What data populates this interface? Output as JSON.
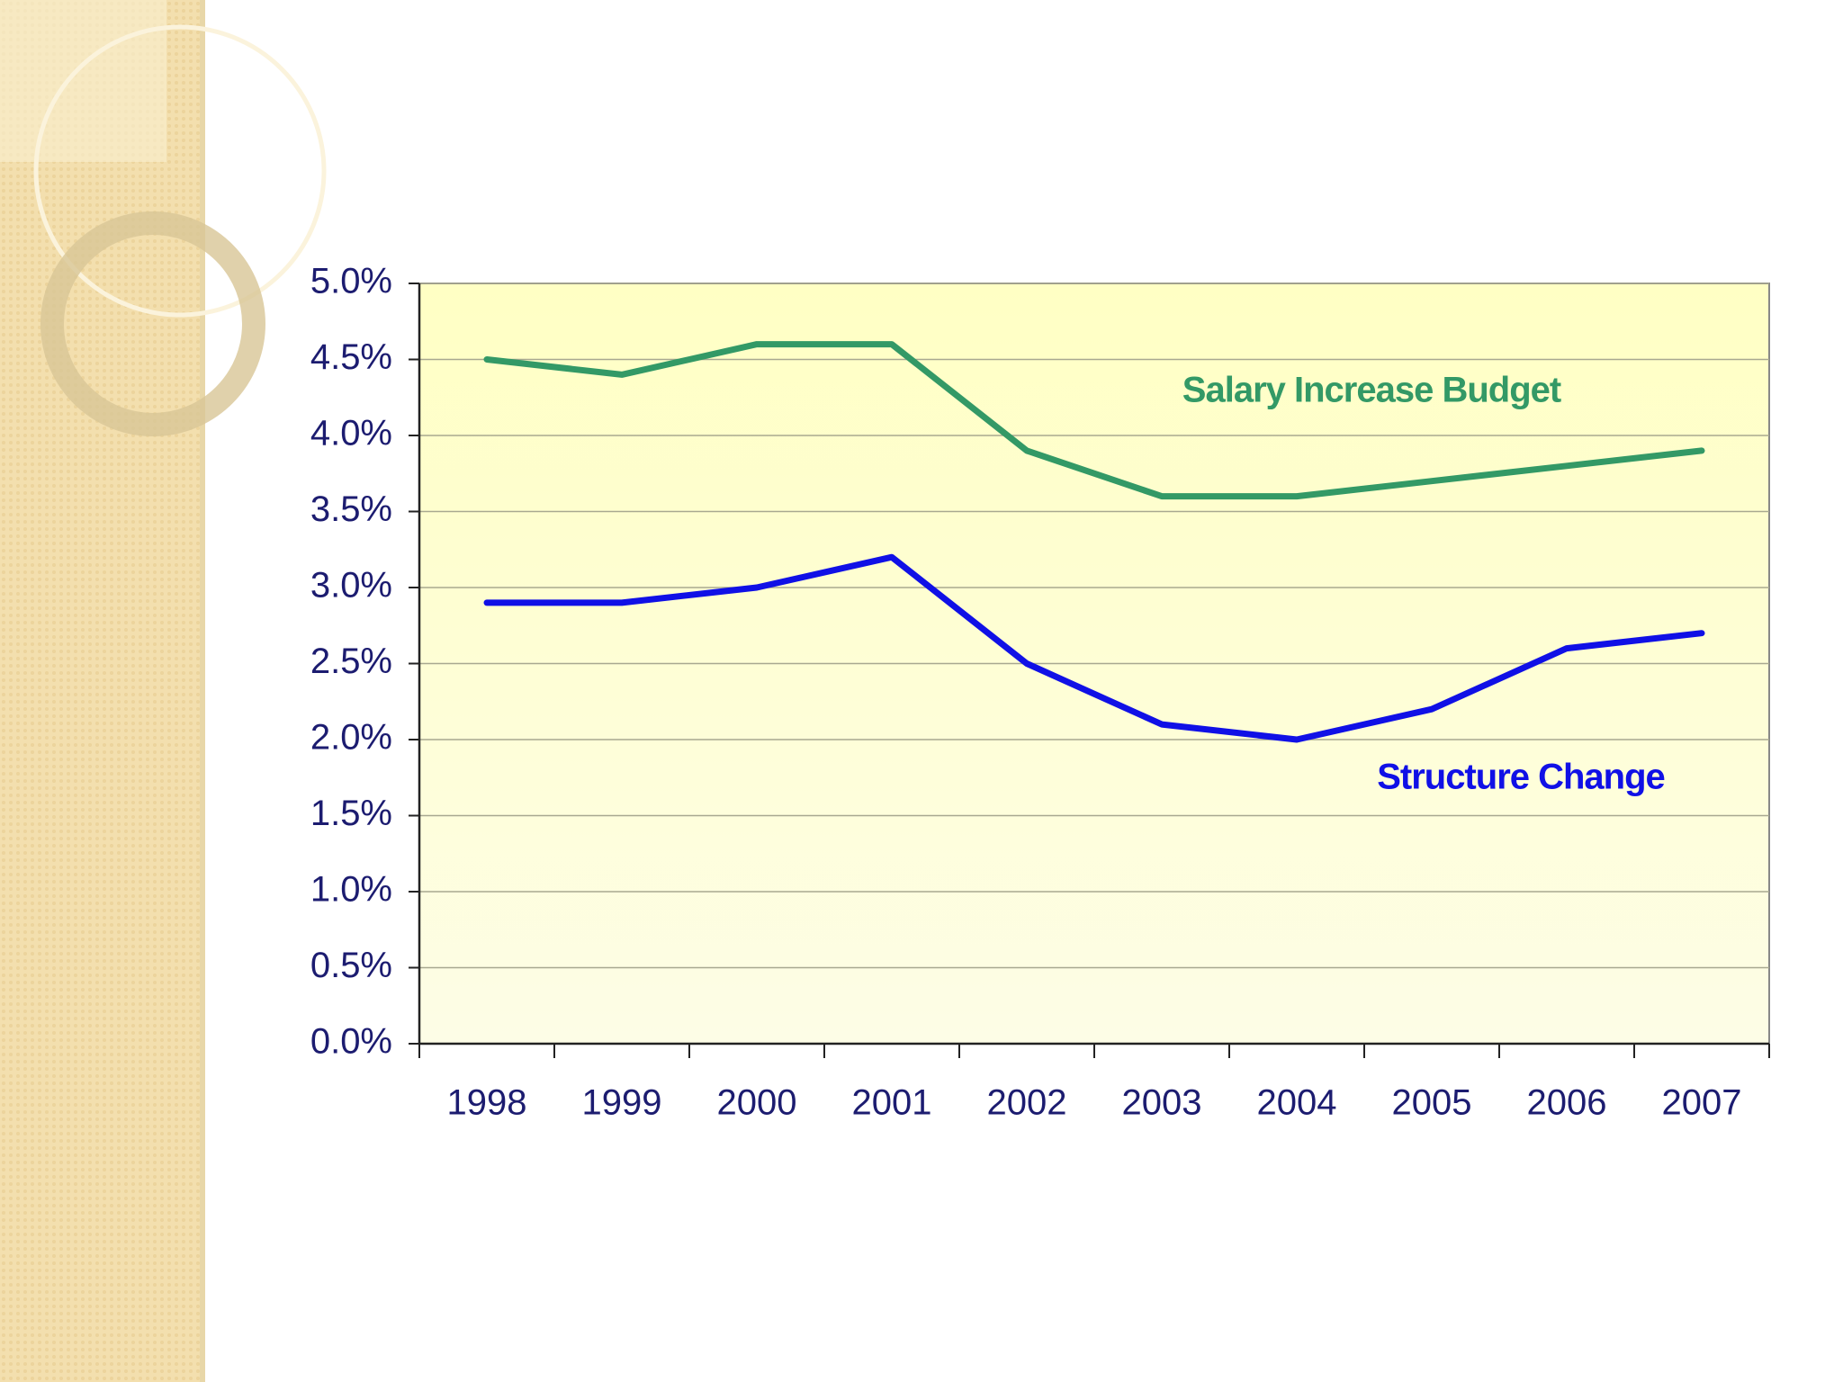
{
  "chart_data": {
    "type": "line",
    "categories": [
      "1998",
      "1999",
      "2000",
      "2001",
      "2002",
      "2003",
      "2004",
      "2005",
      "2006",
      "2007"
    ],
    "series": [
      {
        "name": "Salary Increase Budget",
        "color": "#339966",
        "values": [
          4.5,
          4.4,
          4.6,
          4.6,
          3.9,
          3.6,
          3.6,
          3.7,
          3.8,
          3.9
        ]
      },
      {
        "name": "Structure Change",
        "color": "#1010e6",
        "values": [
          2.9,
          2.9,
          3.0,
          3.2,
          2.5,
          2.1,
          2.0,
          2.2,
          2.6,
          2.7
        ]
      }
    ],
    "ylim": [
      0,
      5
    ],
    "yticks": [
      {
        "value": 0,
        "label": "0.0%"
      },
      {
        "value": 0.5,
        "label": "0.5%"
      },
      {
        "value": 1,
        "label": "1.0%"
      },
      {
        "value": 1.5,
        "label": "1.5%"
      },
      {
        "value": 2,
        "label": "2.0%"
      },
      {
        "value": 2.5,
        "label": "2.5%"
      },
      {
        "value": 3,
        "label": "3.0%"
      },
      {
        "value": 3.5,
        "label": "3.5%"
      },
      {
        "value": 4,
        "label": "4.0%"
      },
      {
        "value": 4.5,
        "label": "4.5%"
      },
      {
        "value": 5,
        "label": "5.0%"
      }
    ],
    "grid": true
  }
}
